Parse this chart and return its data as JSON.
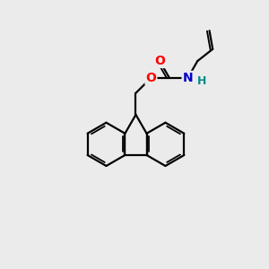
{
  "background_color": "#ebebeb",
  "atom_colors": {
    "C": "#000000",
    "O": "#ff0000",
    "N": "#0000cc",
    "H": "#008b8b"
  },
  "bond_color": "#000000",
  "bond_width": 1.6,
  "font_size_atom": 10,
  "title": ""
}
